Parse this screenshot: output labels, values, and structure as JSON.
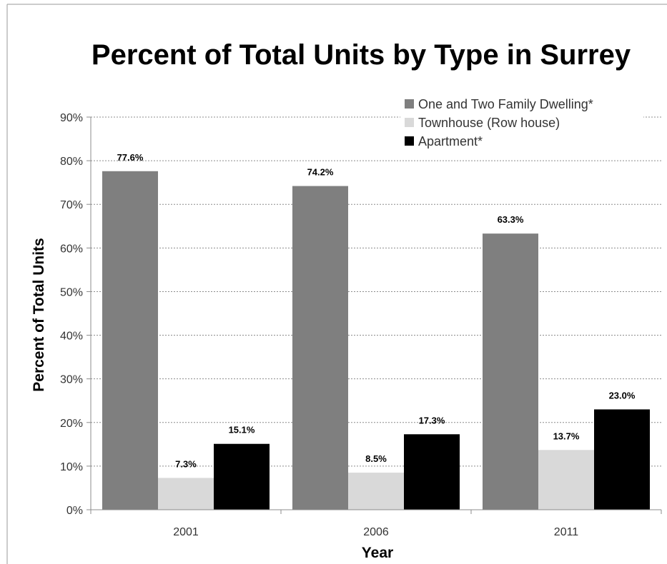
{
  "chart_data": {
    "type": "bar",
    "title": "Percent of Total Units by Type in Surrey",
    "xlabel": "Year",
    "ylabel": "Percent of Total Units",
    "categories": [
      "2001",
      "2006",
      "2011"
    ],
    "ylim": [
      0,
      90
    ],
    "yticks": [
      0,
      10,
      20,
      30,
      40,
      50,
      60,
      70,
      80,
      90
    ],
    "ytick_labels": [
      "0%",
      "10%",
      "20%",
      "30%",
      "40%",
      "50%",
      "60%",
      "70%",
      "80%",
      "90%"
    ],
    "grid": true,
    "legend_position": "top-right",
    "series": [
      {
        "name": "One and Two Family Dwelling*",
        "color": "#7f7f7f",
        "values": [
          77.6,
          74.2,
          63.3
        ],
        "labels": [
          "77.6%",
          "74.2%",
          "63.3%"
        ]
      },
      {
        "name": "Townhouse (Row house)",
        "color": "#d9d9d9",
        "values": [
          7.3,
          8.5,
          13.7
        ],
        "labels": [
          "7.3%",
          "8.5%",
          "13.7%"
        ]
      },
      {
        "name": "Apartment*",
        "color": "#000000",
        "values": [
          15.1,
          17.3,
          23.0
        ],
        "labels": [
          "15.1%",
          "17.3%",
          "23.0%"
        ]
      }
    ]
  }
}
